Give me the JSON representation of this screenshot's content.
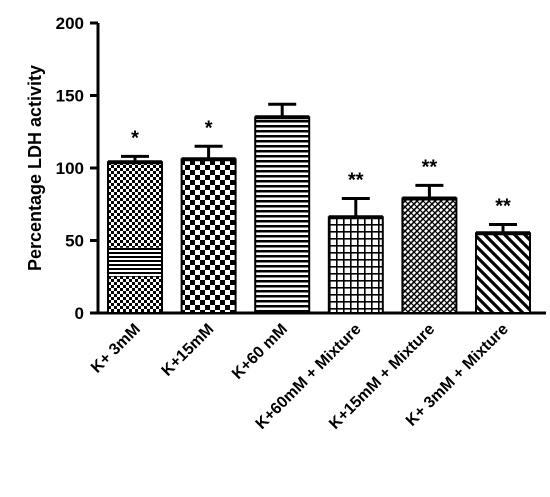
{
  "chart_data": {
    "type": "bar",
    "title": "",
    "xlabel": "",
    "ylabel": "Percentage LDH activity",
    "ylim": [
      0,
      200
    ],
    "yticks": [
      "0",
      "50",
      "100",
      "150",
      "200"
    ],
    "categories": [
      "K+ 3mM",
      "K+15mM",
      "K+60 mM",
      "K+60mM + Mixture",
      "K+15mM + Mixture",
      "K+ 3mM + Mixture"
    ],
    "values": [
      104,
      106,
      135,
      66,
      79,
      55
    ],
    "error_upper": [
      108,
      115,
      144,
      79,
      88,
      61
    ],
    "significance": [
      "*",
      "*",
      "",
      "**",
      "**",
      "**"
    ],
    "patterns": [
      "checker-stripe",
      "checker",
      "horizontal-lines",
      "grid",
      "diagonal-cross",
      "diagonal-stripes"
    ],
    "grid": false,
    "legend": "none"
  }
}
